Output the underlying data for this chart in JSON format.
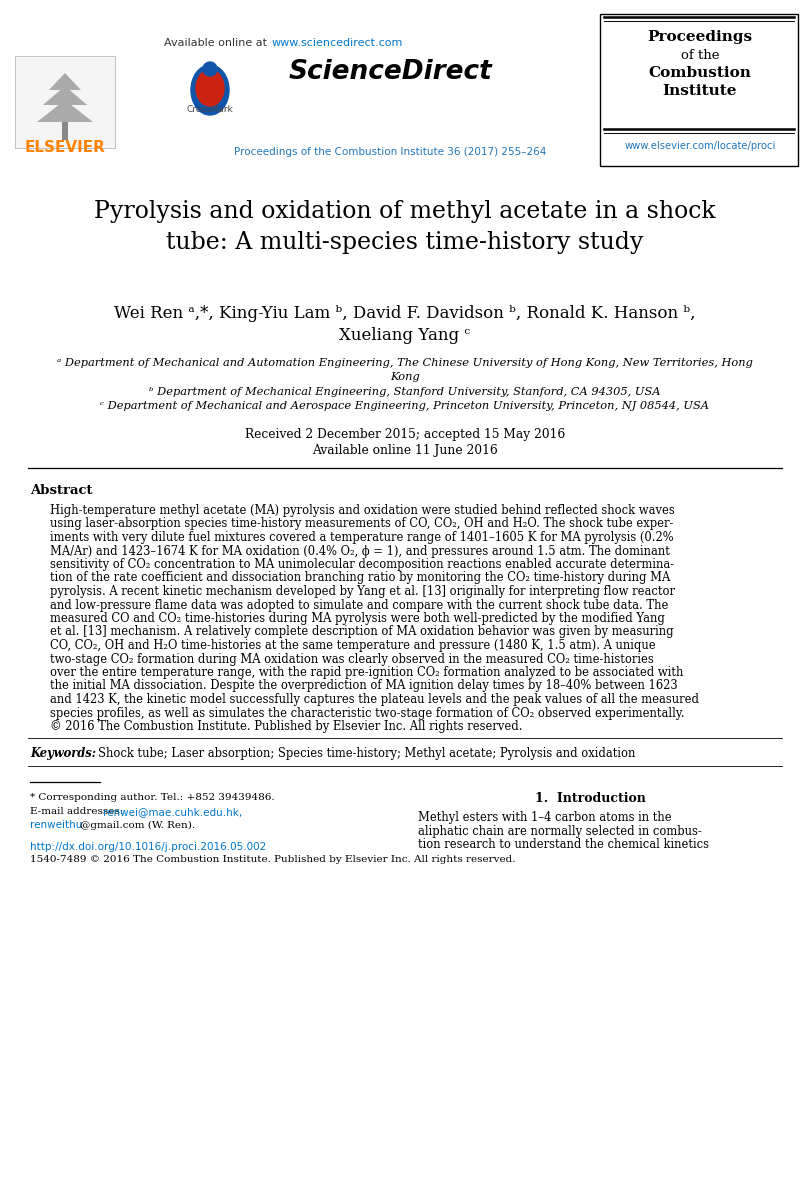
{
  "page_bg": "#ffffff",
  "elsevier_color": "#FF8200",
  "link_color": "#0077CC",
  "journal_color": "#2277BB",
  "title": "Pyrolysis and oxidation of methyl acetate in a shock\ntube: A multi-species time-history study",
  "author1": "Wei Ren ᵃ,*, King-Yiu Lam ᵇ, David F. Davidson ᵇ, Ronald K. Hanson ᵇ,",
  "author2": "Xueliang Yang ᶜ",
  "affil_a": "ᵃ Department of Mechanical and Automation Engineering, The Chinese University of Hong Kong, New Territories, Hong",
  "affil_a2": "Kong",
  "affil_b": "ᵇ Department of Mechanical Engineering, Stanford University, Stanford, CA 94305, USA",
  "affil_c": "ᶜ Department of Mechanical and Aerospace Engineering, Princeton University, Princeton, NJ 08544, USA",
  "dates": "Received 2 December 2015; accepted 15 May 2016",
  "online": "Available online 11 June 2016",
  "abstract_title": "Abstract",
  "abstract_text": "High-temperature methyl acetate (MA) pyrolysis and oxidation were studied behind reflected shock waves\nusing laser-absorption species time-history measurements of CO, CO₂, OH and H₂O. The shock tube exper-\niments with very dilute fuel mixtures covered a temperature range of 1401–1605 K for MA pyrolysis (0.2%\nMA/Ar) and 1423–1674 K for MA oxidation (0.4% O₂, ϕ = 1), and pressures around 1.5 atm. The dominant\nsensitivity of CO₂ concentration to MA unimolecular decomposition reactions enabled accurate determina-\ntion of the rate coefficient and dissociation branching ratio by monitoring the CO₂ time-history during MA\npyrolysis. A recent kinetic mechanism developed by Yang et al. [13] originally for interpreting flow reactor\nand low-pressure flame data was adopted to simulate and compare with the current shock tube data. The\nmeasured CO and CO₂ time-histories during MA pyrolysis were both well-predicted by the modified Yang\net al. [13] mechanism. A relatively complete description of MA oxidation behavior was given by measuring\nCO, CO₂, OH and H₂O time-histories at the same temperature and pressure (1480 K, 1.5 atm). A unique\ntwo-stage CO₂ formation during MA oxidation was clearly observed in the measured CO₂ time-histories\nover the entire temperature range, with the rapid pre-ignition CO₂ formation analyzed to be associated with\nthe initial MA dissociation. Despite the overprediction of MA ignition delay times by 18–40% between 1623\nand 1423 K, the kinetic model successfully captures the plateau levels and the peak values of all the measured\nspecies profiles, as well as simulates the characteristic two-stage formation of CO₂ observed experimentally.\n© 2016 The Combustion Institute. Published by Elsevier Inc. All rights reserved.",
  "keywords_label": "Keywords:",
  "keywords": "Shock tube; Laser absorption; Species time-history; Methyl acetate; Pyrolysis and oxidation",
  "section1_title": "1.  Introduction",
  "section1_text": "Methyl esters with 1–4 carbon atoms in the\naliphatic chain are normally selected in combus-\ntion research to understand the chemical kinetics",
  "footer_doi": "http://dx.doi.org/10.1016/j.proci.2016.05.002",
  "footer_issn": "1540-7489 © 2016 The Combustion Institute. Published by Elsevier Inc. All rights reserved.",
  "corresp": "* Corresponding author. Tel.: +852 39439486.",
  "email_label": "E-mail addresses:",
  "email1": "renwei@mae.cuhk.edu.hk,",
  "email2": "renweithu",
  "email3": "@gmail.com",
  "email_suffix": " (W. Ren).",
  "sd_url": "www.sciencedirect.com",
  "journal_name": "Proceedings of the Combustion Institute 36 (2017) 255–264",
  "journal_url": "www.elsevier.com/locate/proci"
}
